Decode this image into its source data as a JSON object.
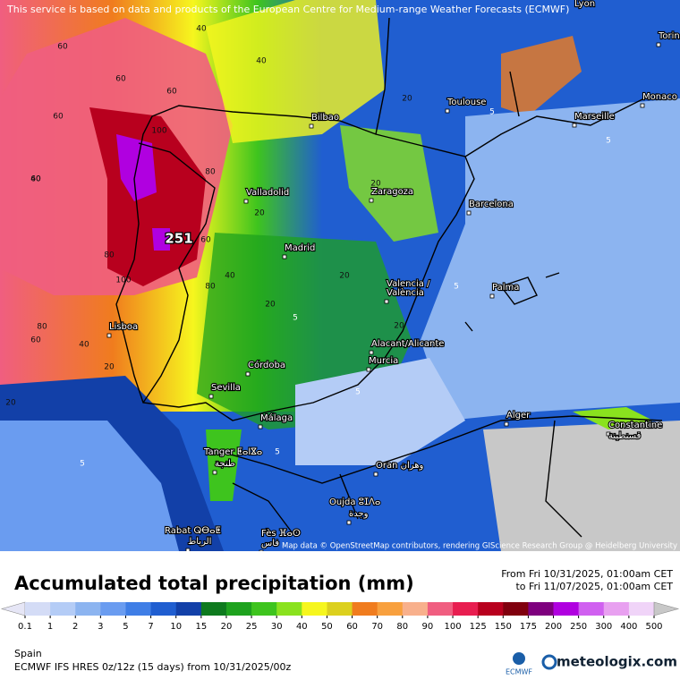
{
  "header": {
    "notice": "This service is based on data and products of the European Centre for Medium-range Weather Forecasts (ECMWF)"
  },
  "map": {
    "cities": [
      "Lyon",
      "Torino",
      "Monaco",
      "Toulouse",
      "Marseille",
      "Bilbao",
      "Valladolid",
      "Zaragoza",
      "Barcelona",
      "Madrid",
      "Valencia /",
      "València",
      "Palma",
      "Lisboa",
      "Alacant/Alicante",
      "Murcia",
      "Córdoba",
      "Sevilla",
      "Málaga",
      "Alger",
      "Constantine",
      "قسنطينة",
      "Tanger ⵟⴰⵏⴵⴰ",
      "طنجة",
      "Oran وهران",
      "Oujda ⵓⵊⴷⴰ",
      "وجدة",
      "Rabat ⵕⴱⴰⵟ",
      "الرباط",
      "Fès ⴼⴰⵙ",
      "فاس"
    ],
    "max_label": "251",
    "contour_labels": [
      "60",
      "40",
      "60",
      "40",
      "60",
      "60",
      "40",
      "80",
      "100",
      "80",
      "60",
      "80",
      "100",
      "60",
      "40",
      "20",
      "20",
      "20",
      "20",
      "20",
      "5",
      "5",
      "5",
      "5",
      "5",
      "5",
      "20",
      "40",
      "60",
      "80",
      "20",
      "5",
      "20"
    ],
    "attribution": "Map data © OpenStreetMap contributors, rendering GIScience Research Group @ Heidelberg University"
  },
  "footer": {
    "title": "Accumulated total precipitation (mm)",
    "from": "From Fri 10/31/2025, 01:00am CET",
    "to": "to Fri 11/07/2025, 01:00am CET",
    "region": "Spain",
    "model": "ECMWF IFS HRES 0z/12z (15 days) from  10/31/2025/00z",
    "ecmwf_logo": "ECMWF",
    "brand": "meteologix.com"
  },
  "colorbar": {
    "levels": [
      0.1,
      1,
      2,
      3,
      5,
      7,
      10,
      15,
      20,
      25,
      30,
      40,
      50,
      60,
      70,
      80,
      90,
      100,
      125,
      150,
      175,
      200,
      250,
      300,
      400,
      500
    ],
    "colors": [
      "#e6e6f6",
      "#d4dcf6",
      "#b4ccf6",
      "#8cb4f0",
      "#6a9cf0",
      "#3f7ee6",
      "#205ed0",
      "#1240a8",
      "#0e7a1e",
      "#1ea21e",
      "#3ec41e",
      "#8ae21e",
      "#f6f61e",
      "#dcd01e",
      "#f07c1e",
      "#f8a03e",
      "#f8b08c",
      "#f05e80",
      "#e81e50",
      "#b8001e",
      "#80000e",
      "#7e007e",
      "#b000e0",
      "#d060f0",
      "#e8a0f0",
      "#f0d4f8",
      "#c8c8c8"
    ]
  }
}
